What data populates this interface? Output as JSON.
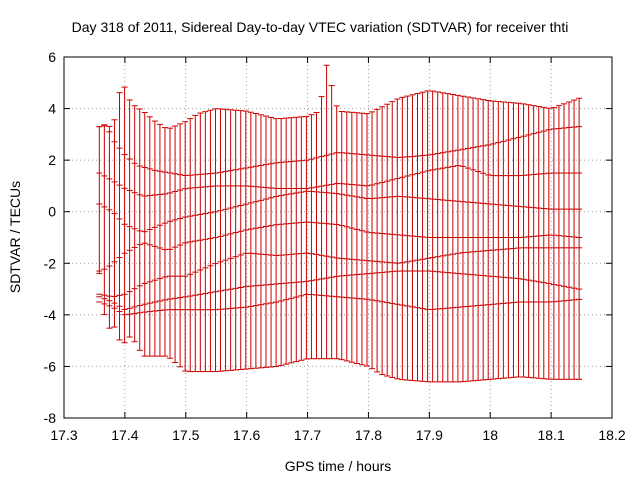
{
  "chart_data": {
    "type": "errorbar",
    "title": "Day 318 of 2011, Sidereal Day-to-day VTEC variation (SDTVAR) for receiver thti",
    "xlabel": "GPS time / hours",
    "ylabel": "SDTVAR / TECUs",
    "xlim": [
      17.3,
      18.2
    ],
    "ylim": [
      -8,
      6
    ],
    "xticks": [
      17.3,
      17.4,
      17.5,
      17.6,
      17.7,
      17.8,
      17.9,
      18.0,
      18.1,
      18.2
    ],
    "xtick_labels": [
      "17.3",
      "17.4",
      "17.5",
      "17.6",
      "17.7",
      "17.8",
      "17.9",
      "18",
      "18.1",
      "18.2"
    ],
    "yticks": [
      -8,
      -6,
      -4,
      -2,
      0,
      2,
      4,
      6
    ],
    "ytick_labels": [
      "-8",
      "-6",
      "-4",
      "-2",
      "0",
      "2",
      "4",
      "6"
    ],
    "grid": true,
    "x_start": 17.358,
    "x_end": 18.146,
    "n_points": 96,
    "series_color": "#cc0000",
    "series": [
      {
        "name": "errorbar upper",
        "points": [
          [
            17.358,
            3.3
          ],
          [
            17.37,
            3.4
          ],
          [
            17.38,
            3.2
          ],
          [
            17.395,
            5.1
          ],
          [
            17.41,
            4.2
          ],
          [
            17.43,
            3.9
          ],
          [
            17.45,
            3.5
          ],
          [
            17.47,
            3.2
          ],
          [
            17.5,
            3.5
          ],
          [
            17.52,
            3.8
          ],
          [
            17.55,
            4.0
          ],
          [
            17.6,
            3.9
          ],
          [
            17.65,
            3.6
          ],
          [
            17.7,
            3.7
          ],
          [
            17.72,
            3.9
          ],
          [
            17.73,
            5.8
          ],
          [
            17.75,
            3.9
          ],
          [
            17.8,
            3.8
          ],
          [
            17.85,
            4.4
          ],
          [
            17.9,
            4.7
          ],
          [
            17.95,
            4.5
          ],
          [
            18.0,
            4.3
          ],
          [
            18.05,
            4.2
          ],
          [
            18.1,
            4.0
          ],
          [
            18.146,
            4.4
          ]
        ]
      },
      {
        "name": "series 1",
        "points": [
          [
            17.358,
            3.3
          ],
          [
            17.37,
            3.35
          ],
          [
            17.38,
            2.8
          ],
          [
            17.39,
            2.5
          ],
          [
            17.4,
            2.2
          ],
          [
            17.42,
            1.8
          ],
          [
            17.45,
            1.6
          ],
          [
            17.5,
            1.4
          ],
          [
            17.55,
            1.5
          ],
          [
            17.6,
            1.7
          ],
          [
            17.65,
            1.9
          ],
          [
            17.7,
            2.0
          ],
          [
            17.75,
            2.3
          ],
          [
            17.8,
            2.2
          ],
          [
            17.85,
            2.1
          ],
          [
            17.9,
            2.2
          ],
          [
            17.95,
            2.4
          ],
          [
            18.0,
            2.6
          ],
          [
            18.05,
            2.9
          ],
          [
            18.1,
            3.2
          ],
          [
            18.146,
            3.3
          ]
        ]
      },
      {
        "name": "series 2",
        "points": [
          [
            17.358,
            1.5
          ],
          [
            17.38,
            1.2
          ],
          [
            17.4,
            0.9
          ],
          [
            17.43,
            0.6
          ],
          [
            17.47,
            0.7
          ],
          [
            17.5,
            0.9
          ],
          [
            17.55,
            1.0
          ],
          [
            17.6,
            1.0
          ],
          [
            17.65,
            0.9
          ],
          [
            17.7,
            0.9
          ],
          [
            17.75,
            1.1
          ],
          [
            17.8,
            1.0
          ],
          [
            17.85,
            1.3
          ],
          [
            17.9,
            1.6
          ],
          [
            17.95,
            1.8
          ],
          [
            18.0,
            1.4
          ],
          [
            18.05,
            1.4
          ],
          [
            18.1,
            1.5
          ],
          [
            18.146,
            1.5
          ]
        ]
      },
      {
        "name": "series 3",
        "points": [
          [
            17.358,
            0.3
          ],
          [
            17.38,
            0.0
          ],
          [
            17.4,
            -0.5
          ],
          [
            17.43,
            -0.8
          ],
          [
            17.47,
            -0.4
          ],
          [
            17.5,
            -0.2
          ],
          [
            17.55,
            0.0
          ],
          [
            17.6,
            0.3
          ],
          [
            17.65,
            0.6
          ],
          [
            17.7,
            0.8
          ],
          [
            17.75,
            0.7
          ],
          [
            17.8,
            0.5
          ],
          [
            17.85,
            0.6
          ],
          [
            17.9,
            0.5
          ],
          [
            17.95,
            0.4
          ],
          [
            18.0,
            0.3
          ],
          [
            18.05,
            0.2
          ],
          [
            18.1,
            0.1
          ],
          [
            18.146,
            0.1
          ]
        ]
      },
      {
        "name": "series 4",
        "points": [
          [
            17.358,
            -2.3
          ],
          [
            17.37,
            -2.2
          ],
          [
            17.38,
            -2.0
          ],
          [
            17.4,
            -1.6
          ],
          [
            17.43,
            -1.2
          ],
          [
            17.47,
            -1.5
          ],
          [
            17.5,
            -1.2
          ],
          [
            17.55,
            -1.0
          ],
          [
            17.6,
            -0.7
          ],
          [
            17.65,
            -0.5
          ],
          [
            17.7,
            -0.4
          ],
          [
            17.75,
            -0.5
          ],
          [
            17.8,
            -0.8
          ],
          [
            17.85,
            -0.9
          ],
          [
            17.9,
            -1.0
          ],
          [
            17.95,
            -1.0
          ],
          [
            18.0,
            -1.0
          ],
          [
            18.05,
            -1.0
          ],
          [
            18.1,
            -0.9
          ],
          [
            18.146,
            -1.0
          ]
        ]
      },
      {
        "name": "series 5",
        "points": [
          [
            17.358,
            -3.2
          ],
          [
            17.38,
            -3.3
          ],
          [
            17.4,
            -3.2
          ],
          [
            17.43,
            -2.8
          ],
          [
            17.47,
            -2.5
          ],
          [
            17.5,
            -2.5
          ],
          [
            17.55,
            -2.0
          ],
          [
            17.6,
            -1.6
          ],
          [
            17.65,
            -1.7
          ],
          [
            17.7,
            -1.6
          ],
          [
            17.75,
            -1.8
          ],
          [
            17.8,
            -1.9
          ],
          [
            17.85,
            -2.0
          ],
          [
            17.9,
            -1.8
          ],
          [
            17.95,
            -1.6
          ],
          [
            18.0,
            -1.5
          ],
          [
            18.05,
            -1.4
          ],
          [
            18.1,
            -1.4
          ],
          [
            18.146,
            -1.4
          ]
        ]
      },
      {
        "name": "series 6",
        "points": [
          [
            17.358,
            -3.3
          ],
          [
            17.38,
            -3.5
          ],
          [
            17.4,
            -3.8
          ],
          [
            17.43,
            -3.6
          ],
          [
            17.47,
            -3.4
          ],
          [
            17.5,
            -3.3
          ],
          [
            17.55,
            -3.1
          ],
          [
            17.6,
            -2.9
          ],
          [
            17.65,
            -2.8
          ],
          [
            17.7,
            -2.7
          ],
          [
            17.75,
            -2.5
          ],
          [
            17.8,
            -2.4
          ],
          [
            17.85,
            -2.3
          ],
          [
            17.9,
            -2.3
          ],
          [
            17.95,
            -2.4
          ],
          [
            18.0,
            -2.5
          ],
          [
            18.05,
            -2.6
          ],
          [
            18.1,
            -2.8
          ],
          [
            18.146,
            -3.0
          ]
        ]
      },
      {
        "name": "series 7",
        "points": [
          [
            17.358,
            -3.5
          ],
          [
            17.38,
            -3.7
          ],
          [
            17.4,
            -4.0
          ],
          [
            17.43,
            -3.9
          ],
          [
            17.47,
            -3.8
          ],
          [
            17.5,
            -3.8
          ],
          [
            17.55,
            -3.8
          ],
          [
            17.6,
            -3.7
          ],
          [
            17.65,
            -3.5
          ],
          [
            17.7,
            -3.2
          ],
          [
            17.75,
            -3.3
          ],
          [
            17.8,
            -3.4
          ],
          [
            17.85,
            -3.6
          ],
          [
            17.9,
            -3.8
          ],
          [
            17.95,
            -3.7
          ],
          [
            18.0,
            -3.6
          ],
          [
            18.05,
            -3.5
          ],
          [
            18.1,
            -3.5
          ],
          [
            18.146,
            -3.4
          ]
        ]
      },
      {
        "name": "errorbar lower",
        "points": [
          [
            17.358,
            -2.4
          ],
          [
            17.37,
            -4.7
          ],
          [
            17.38,
            -4.3
          ],
          [
            17.395,
            -5.2
          ],
          [
            17.41,
            -4.8
          ],
          [
            17.43,
            -5.6
          ],
          [
            17.45,
            -5.6
          ],
          [
            17.47,
            -5.6
          ],
          [
            17.5,
            -6.2
          ],
          [
            17.55,
            -6.2
          ],
          [
            17.6,
            -6.1
          ],
          [
            17.65,
            -6.0
          ],
          [
            17.7,
            -5.7
          ],
          [
            17.75,
            -5.7
          ],
          [
            17.8,
            -6.0
          ],
          [
            17.82,
            -6.3
          ],
          [
            17.85,
            -6.5
          ],
          [
            17.9,
            -6.6
          ],
          [
            17.95,
            -6.6
          ],
          [
            18.0,
            -6.5
          ],
          [
            18.05,
            -6.4
          ],
          [
            18.1,
            -6.5
          ],
          [
            18.146,
            -6.5
          ]
        ]
      }
    ]
  }
}
